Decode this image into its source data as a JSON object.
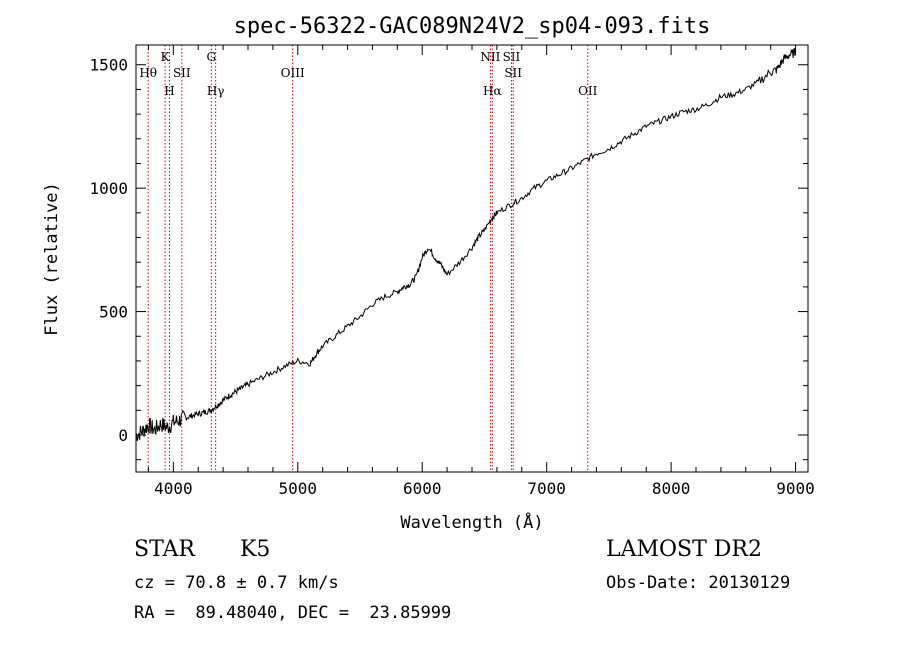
{
  "chart_data": {
    "type": "line",
    "title": "spec-56322-GAC089N24V2_sp04-093.fits",
    "xlabel": "Wavelength (Å)",
    "ylabel": "Flux (relative)",
    "xlim": [
      3700,
      9100
    ],
    "ylim": [
      -150,
      1580
    ],
    "xticks": [
      4000,
      5000,
      6000,
      7000,
      8000,
      9000
    ],
    "yticks": [
      0,
      500,
      1000,
      1500
    ],
    "line_color": "#000000",
    "marker_color": "#cc0000",
    "series": [
      {
        "x": [
          3700,
          3750,
          3800,
          3850,
          3900,
          3950,
          4000,
          4050,
          4100,
          4150,
          4200,
          4250,
          4300,
          4350,
          4400,
          4450,
          4500,
          4550,
          4600,
          4700,
          4800,
          4900,
          5000,
          5100,
          5150,
          5200,
          5300,
          5400,
          5500,
          5600,
          5700,
          5800,
          5850,
          5900,
          5950,
          6000,
          6050,
          6100,
          6150,
          6200,
          6300,
          6400,
          6450,
          6500,
          6560,
          6600,
          6700,
          6800,
          6900,
          7000,
          7100,
          7200,
          7300,
          7400,
          7500,
          7600,
          7700,
          7800,
          7900,
          8000,
          8100,
          8200,
          8300,
          8400,
          8500,
          8600,
          8700,
          8800,
          8850,
          8900,
          8950,
          9000
        ],
        "y": [
          0,
          15,
          40,
          20,
          45,
          30,
          50,
          60,
          70,
          78,
          85,
          92,
          100,
          120,
          140,
          160,
          175,
          190,
          205,
          230,
          255,
          280,
          300,
          290,
          330,
          360,
          400,
          440,
          480,
          530,
          560,
          580,
          600,
          610,
          640,
          720,
          760,
          720,
          690,
          650,
          700,
          760,
          800,
          830,
          880,
          900,
          930,
          960,
          1000,
          1030,
          1055,
          1080,
          1110,
          1140,
          1160,
          1190,
          1220,
          1250,
          1270,
          1290,
          1310,
          1320,
          1340,
          1370,
          1380,
          1400,
          1430,
          1470,
          1480,
          1520,
          1540,
          1550
        ]
      }
    ],
    "lines": [
      {
        "label": "Hθ",
        "x": 3798,
        "row": "upper"
      },
      {
        "label": "K",
        "x": 3934,
        "row": "top"
      },
      {
        "label": "H",
        "x": 3969,
        "row": "middle"
      },
      {
        "label": "SII",
        "x": 4068,
        "row": "upper"
      },
      {
        "label": "G",
        "x": 4305,
        "row": "top"
      },
      {
        "label": "Hγ",
        "x": 4340,
        "row": "middle"
      },
      {
        "label": "OIII",
        "x": 4959,
        "row": "upper"
      },
      {
        "label": "NII",
        "x": 6548,
        "row": "top"
      },
      {
        "label": "Hα",
        "x": 6563,
        "row": "middle"
      },
      {
        "label": "SII",
        "x": 6717,
        "row": "top"
      },
      {
        "label": "SII",
        "x": 6731,
        "row": "upper"
      },
      {
        "label": "OII",
        "x": 7330,
        "row": "middle"
      }
    ]
  },
  "info": {
    "obj_type": "STAR",
    "subclass": "K5",
    "survey": "LAMOST DR2",
    "cz": "cz = 70.8 ± 0.7 km/s",
    "obs_date": "Obs-Date: 20130129",
    "radec": "RA =  89.48040, DEC =  23.85999"
  }
}
